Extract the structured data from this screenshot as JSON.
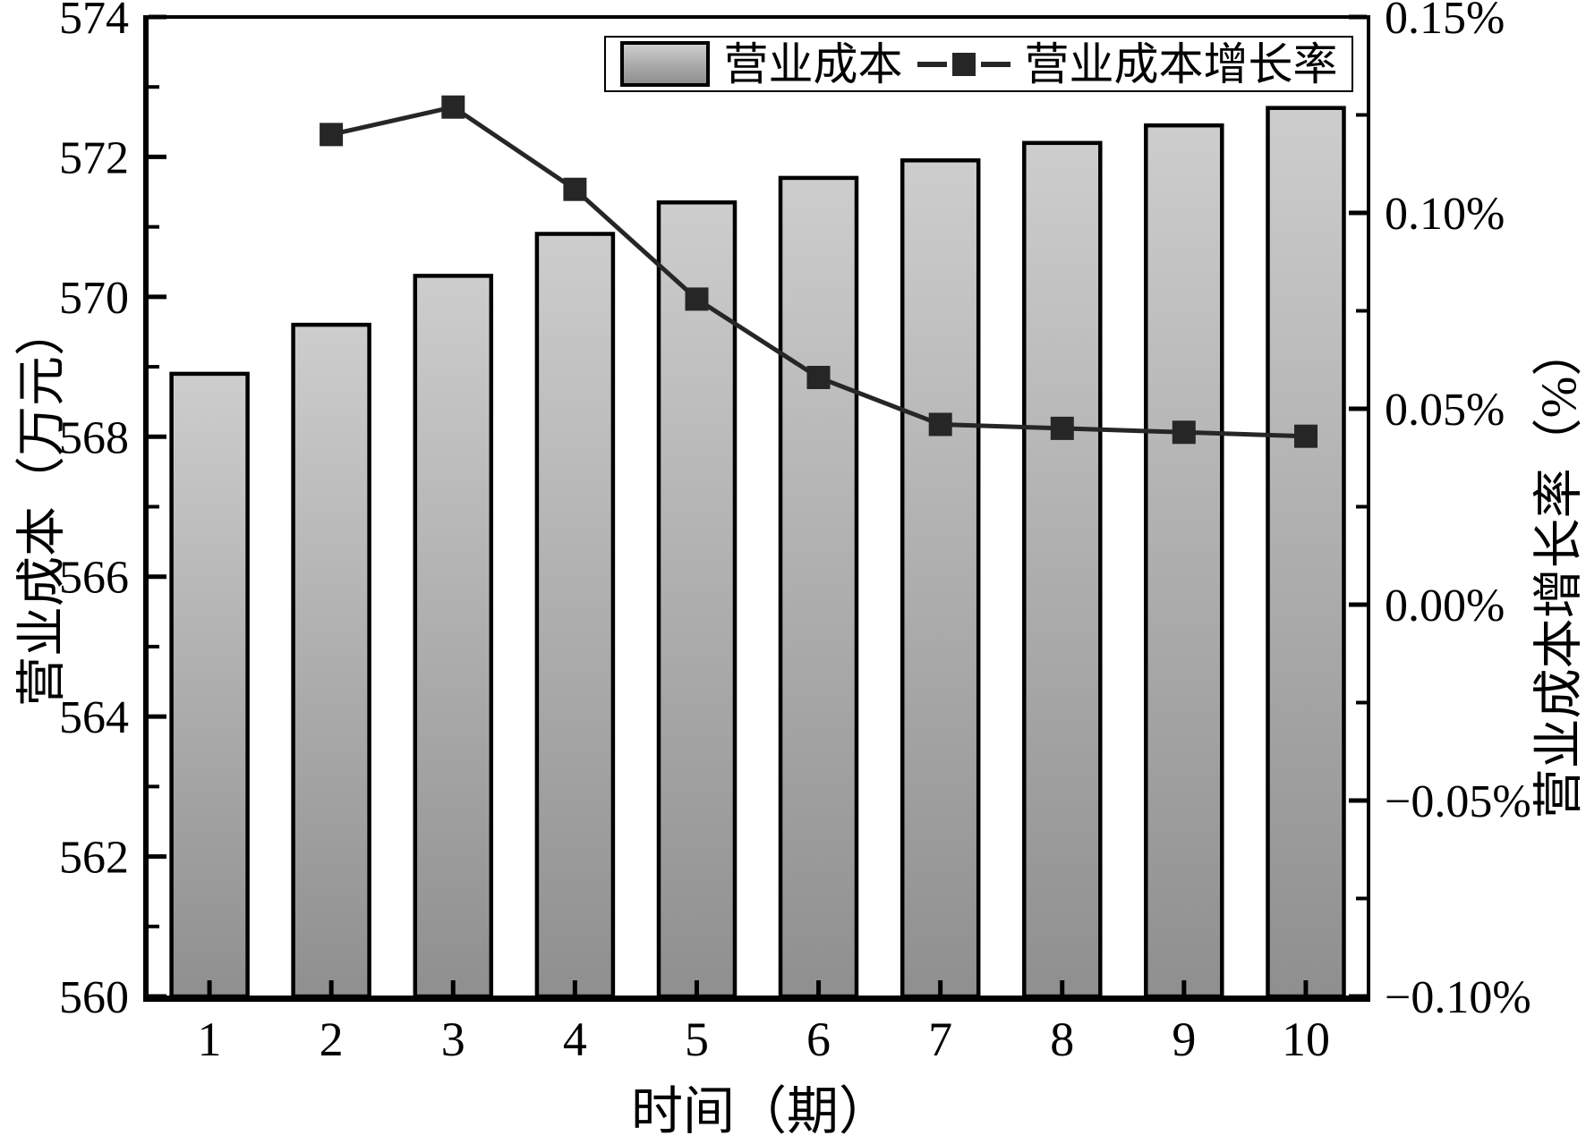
{
  "chart_data": {
    "type": "bar",
    "title": "",
    "categories": [
      1,
      2,
      3,
      4,
      5,
      6,
      7,
      8,
      9,
      10
    ],
    "series": [
      {
        "name": "营业成本",
        "type": "bar",
        "axis": "left",
        "values": [
          568.9,
          569.6,
          570.3,
          570.9,
          571.35,
          571.7,
          571.95,
          572.2,
          572.45,
          572.7
        ]
      },
      {
        "name": "营业成本增长率",
        "type": "line",
        "axis": "right",
        "values": [
          null,
          0.12,
          0.127,
          0.106,
          0.078,
          0.058,
          0.046,
          0.045,
          0.044,
          0.043
        ]
      }
    ],
    "x_axis": {
      "label": "时间（期）",
      "ticks": [
        1,
        2,
        3,
        4,
        5,
        6,
        7,
        8,
        9,
        10
      ]
    },
    "left_axis": {
      "label": "营业成本（万元）",
      "min": 560,
      "max": 574,
      "ticks": [
        560,
        562,
        564,
        566,
        568,
        570,
        572,
        574
      ]
    },
    "right_axis": {
      "label": "营业成本增长率（%）",
      "min": -0.1,
      "max": 0.15,
      "tick_values": [
        0.15,
        0.1,
        0.05,
        0.0,
        -0.05,
        -0.1
      ],
      "tick_labels": [
        "0.15%",
        "0.10%",
        "0.05%",
        "0.00%",
        "−0.05%",
        "−0.10%"
      ]
    },
    "legend": {
      "position": "top",
      "entries": [
        "营业成本",
        "营业成本增长率"
      ]
    },
    "grid": false,
    "style": {
      "bar_fill_top": "#cdcdcd",
      "bar_fill_bottom": "#8f8f8f",
      "bar_border": "#000000",
      "line_color": "#262626",
      "axis_color": "#000000"
    }
  }
}
